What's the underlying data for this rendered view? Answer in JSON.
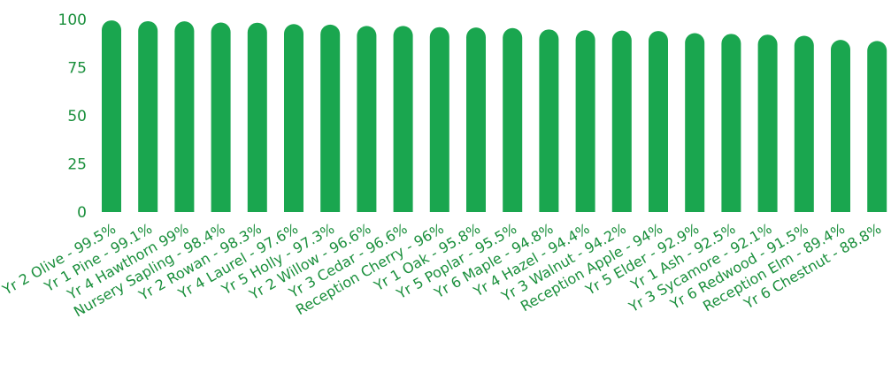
{
  "chart_data": {
    "type": "bar",
    "categories": [
      "Yr 2 Olive - 99.5%",
      "Yr 1 Pine - 99.1%",
      "Yr 4 Hawthorn 99%",
      "Nursery Sapling - 98.4%",
      "Yr 2 Rowan - 98.3%",
      "Yr 4 Laurel - 97.6%",
      "Yr 5 Holly - 97.3%",
      "Yr 2 Willow - 96.6%",
      "Yr 3 Cedar - 96.6%",
      "Reception Cherry - 96%",
      "Yr 1 Oak - 95.8%",
      "Yr 5 Poplar - 95.5%",
      "Yr 6 Maple - 94.8%",
      "Yr 4 Hazel - 94.4%",
      "Yr 3 Walnut - 94.2%",
      "Reception Apple - 94%",
      "Yr 5 Elder - 92.9%",
      "Yr 1 Ash - 92.5%",
      "Yr 3 Sycamore - 92.1%",
      "Yr 6 Redwood - 91.5%",
      "Reception Elm - 89.4%",
      "Yr 6 Chestnut - 88.8%"
    ],
    "values": [
      99.5,
      99.1,
      99,
      98.4,
      98.3,
      97.6,
      97.3,
      96.6,
      96.6,
      96,
      95.8,
      95.5,
      94.8,
      94.4,
      94.2,
      94,
      92.9,
      92.5,
      92.1,
      91.5,
      89.4,
      88.8
    ],
    "yticks": [
      "0",
      "25",
      "50",
      "75",
      "100"
    ],
    "ylim": [
      0,
      100
    ],
    "grid": false,
    "colors": {
      "bar": "#1aa64f",
      "text": "#1a8f3c"
    }
  }
}
